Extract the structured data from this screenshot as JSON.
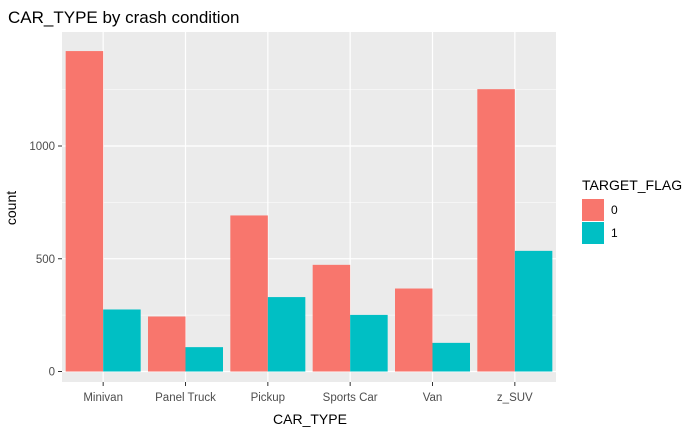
{
  "chart_data": {
    "type": "bar",
    "title": "CAR_TYPE by crash condition",
    "xlabel": "CAR_TYPE",
    "ylabel": "count",
    "categories": [
      "Minivan",
      "Panel Truck",
      "Pickup",
      "Sports Car",
      "Van",
      "z_SUV"
    ],
    "series": [
      {
        "name": "0",
        "values": [
          1421,
          244,
          692,
          473,
          368,
          1252
        ],
        "color": "#F8766D"
      },
      {
        "name": "1",
        "values": [
          275,
          108,
          330,
          251,
          127,
          535
        ],
        "color": "#00BFC4"
      }
    ],
    "ylim": [
      0,
      1500
    ],
    "yticks": [
      0,
      500,
      1000
    ],
    "grid": true,
    "background": "#EBEBEB",
    "legend": {
      "title": "TARGET_FLAG",
      "position": "right",
      "items": [
        {
          "label": "0",
          "color": "#F8766D"
        },
        {
          "label": "1",
          "color": "#00BFC4"
        }
      ]
    }
  }
}
